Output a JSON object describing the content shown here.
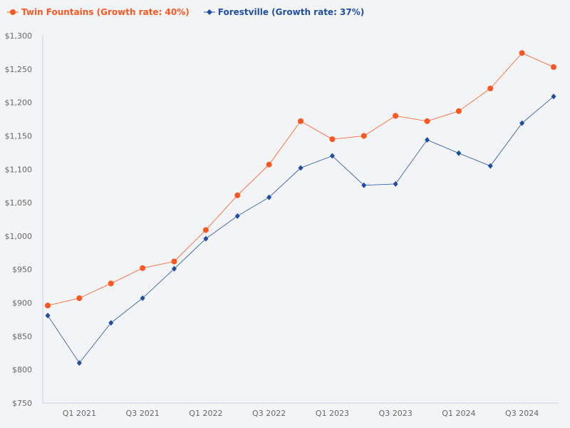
{
  "chart_data": {
    "type": "line",
    "x": [
      "Q4 2020",
      "Q1 2021",
      "Q2 2021",
      "Q3 2021",
      "Q4 2021",
      "Q1 2022",
      "Q2 2022",
      "Q3 2022",
      "Q4 2022",
      "Q1 2023",
      "Q2 2023",
      "Q3 2023",
      "Q4 2023",
      "Q1 2024",
      "Q2 2024",
      "Q3 2024",
      "Q4 2024"
    ],
    "x_tick_labels": [
      "Q1 2021",
      "Q3 2021",
      "Q1 2022",
      "Q3 2022",
      "Q1 2023",
      "Q3 2023",
      "Q1 2024",
      "Q3 2024"
    ],
    "y_tick_labels": [
      "$750",
      "$800",
      "$850",
      "$900",
      "$950",
      "$1,000",
      "$1,050",
      "$1,100",
      "$1,150",
      "$1,200",
      "$1,250",
      "$1,300"
    ],
    "ylim": [
      750,
      1300
    ],
    "grid": false,
    "legend_position": "top-left",
    "series": [
      {
        "name": "Twin Fountains (Growth rate: 40%)",
        "color": "#ff5722",
        "marker": "circle",
        "values": [
          896,
          907,
          929,
          952,
          962,
          1009,
          1061,
          1107,
          1172,
          1145,
          1150,
          1180,
          1172,
          1187,
          1221,
          1274,
          1253
        ]
      },
      {
        "name": "Forestville (Growth rate: 37%)",
        "color": "#1f4e9f",
        "marker": "diamond",
        "values": [
          881,
          810,
          870,
          907,
          951,
          996,
          1030,
          1058,
          1102,
          1120,
          1076,
          1078,
          1144,
          1124,
          1105,
          1169,
          1209
        ]
      }
    ]
  }
}
